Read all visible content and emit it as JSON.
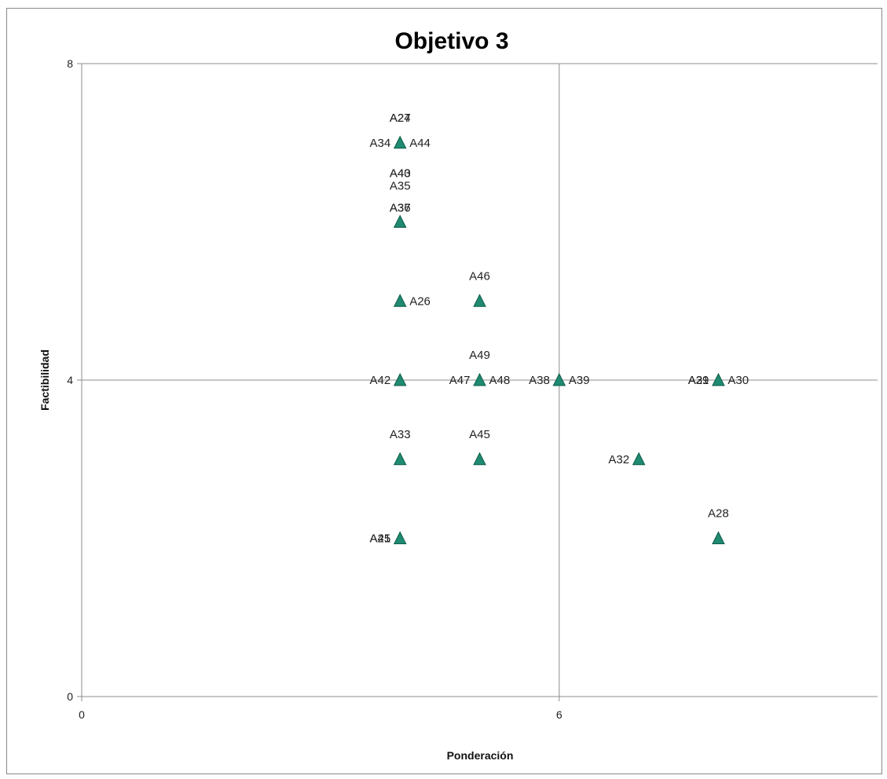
{
  "chart_data": {
    "type": "scatter",
    "title": "Objetivo 3",
    "xlabel": "Ponderación",
    "ylabel": "Factibilidad",
    "xlim": [
      0,
      10
    ],
    "ylim": [
      0,
      8
    ],
    "x_ticks": [
      "0",
      "6"
    ],
    "y_ticks": [
      "0",
      "4",
      "8"
    ],
    "crosshair": {
      "x": 6,
      "y": 4
    },
    "marker": "triangle",
    "marker_color": "#1f8a70",
    "grid": false,
    "legend": "none",
    "points": [
      {
        "label": "A27",
        "x": 4,
        "y": 7
      },
      {
        "label": "A24",
        "x": 4,
        "y": 7
      },
      {
        "label": "A34",
        "x": 4,
        "y": 7
      },
      {
        "label": "A44",
        "x": 4,
        "y": 7
      },
      {
        "label": "A35",
        "x": 4,
        "y": 6
      },
      {
        "label": "A36",
        "x": 4,
        "y": 6
      },
      {
        "label": "A37",
        "x": 4,
        "y": 6
      },
      {
        "label": "A40",
        "x": 4,
        "y": 6
      },
      {
        "label": "A43",
        "x": 4,
        "y": 6
      },
      {
        "label": "A26",
        "x": 4,
        "y": 5
      },
      {
        "label": "A46",
        "x": 5,
        "y": 5
      },
      {
        "label": "A42",
        "x": 4,
        "y": 4
      },
      {
        "label": "A47",
        "x": 5,
        "y": 4
      },
      {
        "label": "A48",
        "x": 5,
        "y": 4
      },
      {
        "label": "A49",
        "x": 5,
        "y": 4
      },
      {
        "label": "A38",
        "x": 6,
        "y": 4
      },
      {
        "label": "A39",
        "x": 6,
        "y": 4
      },
      {
        "label": "A29",
        "x": 8,
        "y": 4
      },
      {
        "label": "A31",
        "x": 8,
        "y": 4
      },
      {
        "label": "A30",
        "x": 8,
        "y": 4
      },
      {
        "label": "A33",
        "x": 4,
        "y": 3
      },
      {
        "label": "A45",
        "x": 5,
        "y": 3
      },
      {
        "label": "A32",
        "x": 7,
        "y": 3
      },
      {
        "label": "A25",
        "x": 4,
        "y": 2
      },
      {
        "label": "A41",
        "x": 4,
        "y": 2
      },
      {
        "label": "A28",
        "x": 8,
        "y": 2
      }
    ]
  }
}
